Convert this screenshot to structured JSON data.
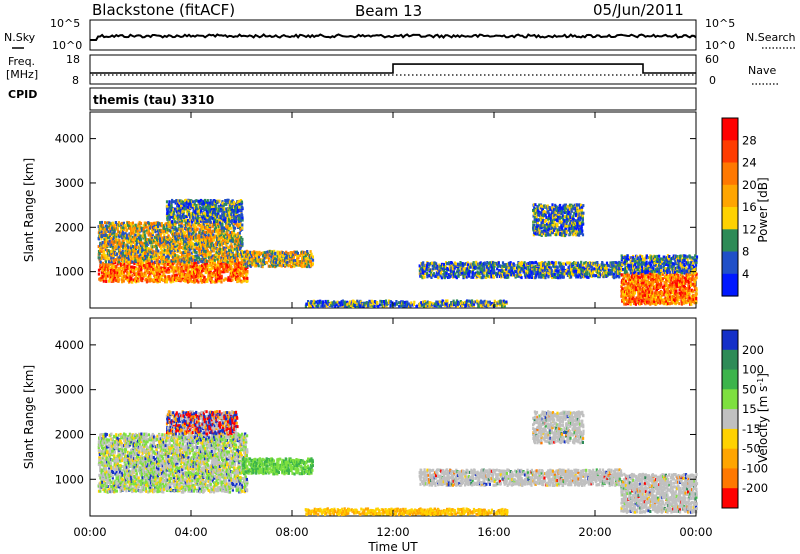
{
  "header": {
    "station": "Blackstone (fitACF)",
    "beam": "Beam 13",
    "date": "05/Jun/2011"
  },
  "noise_panel": {
    "left_label": "N.Sky",
    "right_label": "N.Search",
    "left_ticks": [
      "10^5",
      "10^0"
    ],
    "right_ticks": [
      "10^5",
      "10^0"
    ]
  },
  "freq_panel": {
    "left_label_top": "Freq.",
    "left_label_unit": "[MHz]",
    "left_ticks": [
      "18",
      "8"
    ],
    "cpid_label": "CPID",
    "right_label": "Nave",
    "right_ticks": [
      "60",
      "0"
    ],
    "cpid_text": "themis (tau) 3310",
    "nave_steps": [
      {
        "from_hour": 0,
        "to_hour": 12,
        "value": 9
      },
      {
        "from_hour": 12,
        "to_hour": 21.9,
        "value": 17
      },
      {
        "from_hour": 21.9,
        "to_hour": 24,
        "value": 9
      }
    ]
  },
  "chart_data": [
    {
      "type": "heatmap",
      "name": "power",
      "ylabel": "Slant Range [km]",
      "xlabel": "Time UT",
      "xlim": [
        0,
        24
      ],
      "ylim": [
        180,
        4600
      ],
      "x_ticks": [
        "00:00",
        "04:00",
        "08:00",
        "12:00",
        "16:00",
        "20:00",
        "00:00"
      ],
      "y_ticks": [
        "1000",
        "2000",
        "3000",
        "4000"
      ],
      "colorbar": {
        "label": "Power [dB]",
        "ticks": [
          "28",
          "24",
          "20",
          "16",
          "12",
          "8",
          "4"
        ],
        "colors": [
          "#ff0000",
          "#ff3c00",
          "#ff7800",
          "#ffa500",
          "#ffd200",
          "#2e8b57",
          "#2050c8",
          "#0018ff"
        ]
      },
      "regions": [
        {
          "t0": 0.3,
          "t1": 6.2,
          "r0": 750,
          "r1": 1200,
          "level": "high"
        },
        {
          "t0": 0.3,
          "t1": 6.0,
          "r0": 1200,
          "r1": 2100,
          "level": "mid"
        },
        {
          "t0": 3.0,
          "t1": 6.0,
          "r0": 2100,
          "r1": 2600,
          "level": "low"
        },
        {
          "t0": 6.0,
          "t1": 8.8,
          "r0": 1100,
          "r1": 1450,
          "level": "mid"
        },
        {
          "t0": 13.0,
          "t1": 21.0,
          "r0": 850,
          "r1": 1200,
          "level": "low"
        },
        {
          "t0": 17.5,
          "t1": 19.5,
          "r0": 1800,
          "r1": 2500,
          "level": "low"
        },
        {
          "t0": 21.0,
          "t1": 24.0,
          "r0": 250,
          "r1": 950,
          "level": "high"
        },
        {
          "t0": 21.0,
          "t1": 24.0,
          "r0": 950,
          "r1": 1350,
          "level": "low"
        },
        {
          "t0": 8.5,
          "t1": 16.5,
          "r0": 200,
          "r1": 330,
          "level": "low"
        }
      ]
    },
    {
      "type": "heatmap",
      "name": "velocity",
      "ylabel": "Slant Range [km]",
      "xlabel": "Time UT",
      "xlim": [
        0,
        24
      ],
      "ylim": [
        180,
        4600
      ],
      "x_ticks": [
        "00:00",
        "04:00",
        "08:00",
        "12:00",
        "16:00",
        "20:00",
        "00:00"
      ],
      "y_ticks": [
        "1000",
        "2000",
        "3000",
        "4000"
      ],
      "colorbar": {
        "label": "Velocity [m s",
        "label_sup": "-1",
        "label_end": "]",
        "ticks": [
          "200",
          "100",
          "50",
          "15",
          "-15",
          "-50",
          "-100",
          "-200"
        ],
        "colors": [
          "#1430c8",
          "#2e8b57",
          "#3cb44b",
          "#7ee040",
          "#c0c0c0",
          "#ffd200",
          "#ffa500",
          "#ff7800",
          "#ff0000"
        ]
      },
      "regions": [
        {
          "t0": 0.3,
          "t1": 6.2,
          "r0": 700,
          "r1": 2000,
          "level": "gray-green"
        },
        {
          "t0": 3.0,
          "t1": 5.8,
          "r0": 2000,
          "r1": 2500,
          "level": "mixed"
        },
        {
          "t0": 6.0,
          "t1": 8.8,
          "r0": 1100,
          "r1": 1450,
          "level": "green"
        },
        {
          "t0": 13.0,
          "t1": 21.0,
          "r0": 850,
          "r1": 1200,
          "level": "gray"
        },
        {
          "t0": 17.5,
          "t1": 19.5,
          "r0": 1800,
          "r1": 2500,
          "level": "gray"
        },
        {
          "t0": 21.0,
          "t1": 24.0,
          "r0": 250,
          "r1": 1100,
          "level": "gray"
        },
        {
          "t0": 8.5,
          "t1": 16.5,
          "r0": 200,
          "r1": 330,
          "level": "yellow"
        }
      ]
    }
  ]
}
